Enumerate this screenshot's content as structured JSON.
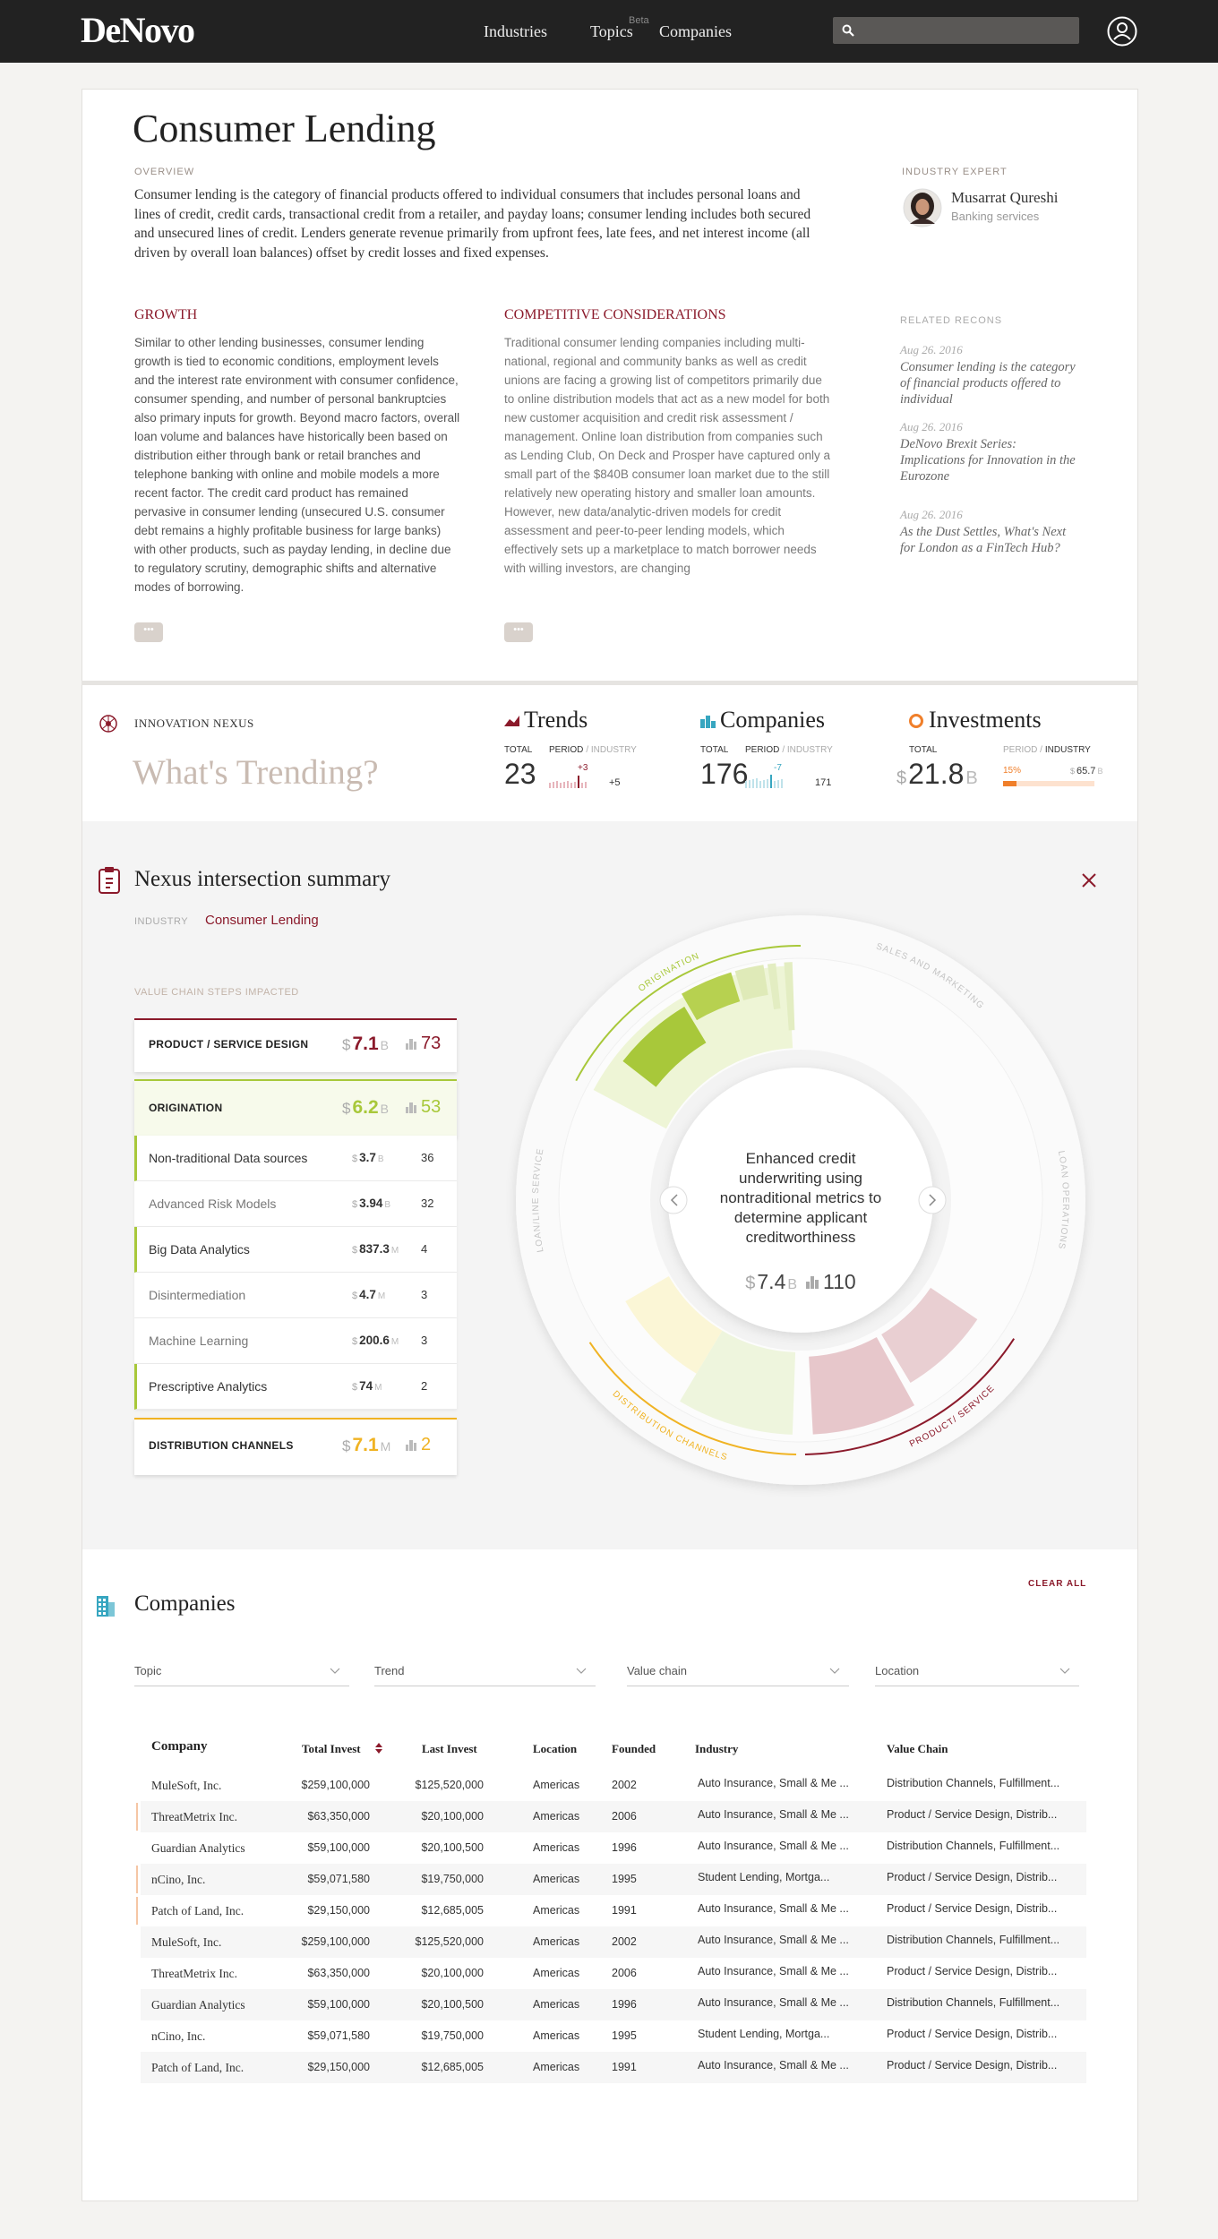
{
  "header": {
    "logo": "DeNovo",
    "nav": [
      "Industries",
      "Topics",
      "Companies"
    ],
    "beta": "Beta"
  },
  "industry": {
    "title": "Consumer Lending",
    "overview_label": "OVERVIEW",
    "overview": "Consumer lending is the category of financial products offered to individual consumers that includes personal loans and lines of credit, credit cards, transactional credit from a retailer, and payday loans; consumer lending includes both secured and unsecured lines of credit. Lenders generate revenue primarily from upfront fees, late fees, and net interest income (all driven by overall loan balances) offset by credit losses and fixed expenses.",
    "expert_label": "INDUSTRY EXPERT",
    "expert_name": "Musarrat Qureshi",
    "expert_role": "Banking services",
    "growth_title": "GROWTH",
    "growth": "Similar to other lending businesses, consumer lending growth is tied to economic conditions, employment levels and the interest rate environment with consumer confidence, consumer spending, and number of personal bankruptcies also primary inputs for growth. Beyond macro factors, overall loan volume and balances have historically been based on distribution either through bank or retail branches and telephone banking with online and mobile models a more recent factor. The credit card product has remained pervasive in consumer lending (unsecured U.S. consumer debt remains a highly profitable business for large banks) with other products, such as payday lending, in decline due to regulatory scrutiny, demographic shifts and alternative modes of borrowing.",
    "competitive_title": "COMPETITIVE CONSIDERATIONS",
    "competitive": "Traditional consumer lending companies including multi-national, regional and community banks as well as credit unions are facing a growing list of competitors primarily due to online distribution models that act as a new model for both new customer acquisition and credit risk assessment / management. Online loan distribution from companies such as Lending Club, On Deck and Prosper have captured only a small part of the $840B consumer loan market due to the still relatively new operating history and smaller loan amounts. However, new data/analytic-driven models for credit assessment and peer-to-peer lending models, which effectively sets up a marketplace to match borrower needs with willing investors, are changing",
    "more": "•••",
    "related_label": "RELATED RECONS",
    "related": [
      {
        "date": "Aug 26. 2016",
        "title": "Consumer lending is the category of financial products offered to individual"
      },
      {
        "date": "Aug 26. 2016",
        "title": "DeNovo Brexit Series: Implications for Innovation in the Eurozone"
      },
      {
        "date": "Aug 26. 2016",
        "title": "As the Dust Settles, What's Next for London as a FinTech Hub?"
      }
    ]
  },
  "nexus": {
    "label": "INNOVATION NEXUS",
    "heading": "What's Trending?",
    "stats": [
      {
        "title": "Trends",
        "total_label": "TOTAL",
        "period_label": "PERIOD",
        "industry_label": "/ INDUSTRY",
        "total": "23",
        "delta": "+3",
        "industry_value": "+5"
      },
      {
        "title": "Companies",
        "total_label": "TOTAL",
        "period_label": "PERIOD",
        "industry_label": "/ INDUSTRY",
        "total": "176",
        "delta": "-7",
        "industry_value": "171"
      },
      {
        "title": "Investments",
        "total_label": "TOTAL",
        "period_label": "PERIOD /",
        "industry_label": "INDUSTRY",
        "total": {
          "cur": "$",
          "amt": "21.8",
          "unit": "B"
        },
        "delta": "15%",
        "industry_value": {
          "cur": "$",
          "amt": "65.7",
          "unit": "B"
        }
      }
    ]
  },
  "summary": {
    "title": "Nexus intersection summary",
    "industry_label": "INDUSTRY",
    "industry": "Consumer Lending",
    "steps_label": "VALUE CHAIN STEPS IMPACTED",
    "steps": [
      {
        "name": "PRODUCT / SERVICE DESIGN",
        "money": {
          "cur": "$",
          "amt": "7.1",
          "unit": "B"
        },
        "count": "73"
      },
      {
        "name": "ORIGINATION",
        "money": {
          "cur": "$",
          "amt": "6.2",
          "unit": "B"
        },
        "count": "53",
        "items": [
          {
            "name": "Non-traditional Data sources",
            "money": {
              "cur": "$",
              "amt": "3.7",
              "unit": "B"
            },
            "count": "36"
          },
          {
            "name": "Advanced Risk Models",
            "money": {
              "cur": "$",
              "amt": "3.94",
              "unit": "B"
            },
            "count": "32"
          },
          {
            "name": "Big Data Analytics",
            "money": {
              "cur": "$",
              "amt": "837.3",
              "unit": "M"
            },
            "count": "4"
          },
          {
            "name": "Disintermediation",
            "money": {
              "cur": "$",
              "amt": "4.7",
              "unit": "M"
            },
            "count": "3"
          },
          {
            "name": "Machine Learning",
            "money": {
              "cur": "$",
              "amt": "200.6",
              "unit": "M"
            },
            "count": "3"
          },
          {
            "name": "Prescriptive Analytics",
            "money": {
              "cur": "$",
              "amt": "74",
              "unit": "M"
            },
            "count": "2"
          }
        ]
      },
      {
        "name": "DISTRIBUTION CHANNELS",
        "money": {
          "cur": "$",
          "amt": "7.1",
          "unit": "M"
        },
        "count": "2"
      }
    ],
    "wheel_labels": [
      "ORIGINATION",
      "SALES AND MARKETING",
      "LOAN OPERATIONS",
      "PRODUCT/ SERVICE",
      "DISTRIBUTION CHANNELS",
      "LOAN/LINE SERVICE"
    ],
    "focus": {
      "text": "Enhanced credit underwriting using nontraditional metrics to determine applicant creditworthiness",
      "money": {
        "cur": "$",
        "amt": "7.4",
        "unit": "B"
      },
      "count": "110"
    }
  },
  "companies": {
    "title": "Companies",
    "clear": "CLEAR ALL",
    "filters": [
      "Topic",
      "Trend",
      "Value chain",
      "Location"
    ],
    "columns": [
      "Company",
      "Total Invest",
      "Last Invest",
      "Location",
      "Founded",
      "Industry",
      "Value Chain"
    ],
    "rows": [
      [
        "MuleSoft, Inc.",
        "$259,100,000",
        "$125,520,000",
        "Americas",
        "2002",
        "Auto Insurance, Small & Me ...",
        "Distribution Channels, Fulfillment..."
      ],
      [
        "ThreatMetrix Inc.",
        "$63,350,000",
        "$20,100,000",
        "Americas",
        "2006",
        "Auto Insurance, Small & Me ...",
        "Product / Service Design, Distrib..."
      ],
      [
        "Guardian Analytics",
        "$59,100,000",
        "$20,100,500",
        "Americas",
        "1996",
        "Auto Insurance, Small & Me ...",
        "Distribution Channels, Fulfillment..."
      ],
      [
        "nCino, Inc.",
        "$59,071,580",
        "$19,750,000",
        "Americas",
        "1995",
        "Student Lending, Mortga...",
        "Product / Service Design, Distrib..."
      ],
      [
        "Patch of Land, Inc.",
        "$29,150,000",
        "$12,685,005",
        "Americas",
        "1991",
        "Auto Insurance, Small & Me ...",
        "Product / Service Design, Distrib..."
      ],
      [
        "MuleSoft, Inc.",
        "$259,100,000",
        "$125,520,000",
        "Americas",
        "2002",
        "Auto Insurance, Small & Me ...",
        "Distribution Channels, Fulfillment..."
      ],
      [
        "ThreatMetrix Inc.",
        "$63,350,000",
        "$20,100,000",
        "Americas",
        "2006",
        "Auto Insurance, Small & Me ...",
        "Product / Service Design, Distrib..."
      ],
      [
        "Guardian Analytics",
        "$59,100,000",
        "$20,100,500",
        "Americas",
        "1996",
        "Auto Insurance, Small & Me ...",
        "Distribution Channels, Fulfillment..."
      ],
      [
        "nCino, Inc.",
        "$59,071,580",
        "$19,750,000",
        "Americas",
        "1995",
        "Student Lending, Mortga...",
        "Product / Service Design, Distrib..."
      ],
      [
        "Patch of Land, Inc.",
        "$29,150,000",
        "$12,685,005",
        "Americas",
        "1991",
        "Auto Insurance, Small & Me ...",
        "Product / Service Design, Distrib..."
      ]
    ]
  }
}
